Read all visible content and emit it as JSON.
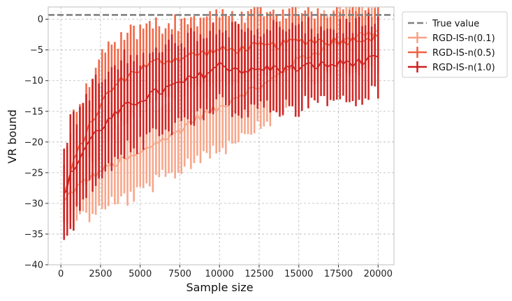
{
  "chart_data": {
    "type": "line",
    "title": "",
    "xlabel": "Sample size",
    "ylabel": "VR bound",
    "xlim": [
      -800,
      21000
    ],
    "ylim": [
      -40,
      2
    ],
    "x_ticks": [
      0,
      2500,
      5000,
      7500,
      10000,
      12500,
      15000,
      17500,
      20000
    ],
    "y_ticks": [
      0,
      -5,
      -10,
      -15,
      -20,
      -25,
      -30,
      -35,
      -40
    ],
    "x_tick_labels": [
      "0",
      "2500",
      "5000",
      "7500",
      "10000",
      "12500",
      "15000",
      "17500",
      "20000"
    ],
    "y_tick_labels": [
      "0",
      "−5",
      "−10",
      "−15",
      "−20",
      "−25",
      "−30",
      "−35",
      "−40"
    ],
    "grid": true,
    "legend_placement": "outside-right-top",
    "true_value": 0.7,
    "x_start": 200,
    "x_step": 200,
    "series": [
      {
        "name": "RGD-IS-n(0.1)",
        "color": "#f7a184",
        "knots_x": [
          200,
          500,
          1000,
          1500,
          2000,
          3000,
          4000,
          5000,
          6000,
          7000,
          8000,
          9000,
          10000,
          11000,
          12000,
          13000,
          14000,
          15000,
          16000,
          17000,
          18000,
          19000,
          20000
        ],
        "knots_mean": [
          -30,
          -28.5,
          -27.5,
          -26.5,
          -25.5,
          -24,
          -23,
          -22,
          -20,
          -19,
          -17,
          -15.5,
          -14.5,
          -12.5,
          -11.5,
          -10.5,
          -8.5,
          -6.5,
          -5.5,
          -4,
          -3,
          -2.5,
          -2
        ],
        "knots_err": [
          3.5,
          4,
          5,
          6,
          6,
          6.5,
          6.5,
          6.5,
          6.5,
          6.5,
          6.5,
          6.5,
          6.5,
          6.5,
          6.5,
          6.5,
          6.5,
          6,
          5.5,
          5,
          5,
          5,
          4.5
        ]
      },
      {
        "name": "RGD-IS-n(0.5)",
        "color": "#f0603f",
        "knots_x": [
          200,
          500,
          1000,
          1500,
          2000,
          2500,
          3000,
          4000,
          5000,
          6000,
          7000,
          8000,
          9000,
          10000,
          11000,
          12000,
          13000,
          14000,
          15000,
          16000,
          17000,
          18000,
          19000,
          20000
        ],
        "knots_mean": [
          -28.5,
          -26,
          -22,
          -19,
          -16.5,
          -14,
          -12,
          -9.5,
          -8,
          -7,
          -6.5,
          -6,
          -5.5,
          -5,
          -5,
          -4.5,
          -4.5,
          -4,
          -3.5,
          -3.5,
          -3.5,
          -3.5,
          -3,
          -3
        ],
        "knots_err": [
          5,
          7,
          7,
          7,
          7,
          7,
          7,
          6.5,
          6.5,
          6,
          6,
          6,
          5.5,
          5.5,
          5.5,
          5.5,
          5.5,
          5,
          5,
          5,
          5,
          5,
          5,
          5
        ]
      },
      {
        "name": "RGD-IS-n(1.0)",
        "color": "#cc1f1f",
        "knots_x": [
          200,
          500,
          1000,
          1500,
          2000,
          3000,
          4000,
          5000,
          6000,
          7000,
          8000,
          9000,
          10000,
          11000,
          12000,
          13000,
          14000,
          15000,
          16000,
          17000,
          18000,
          19000,
          20000
        ],
        "knots_mean": [
          -29,
          -26,
          -23.5,
          -21,
          -19,
          -16.5,
          -14.5,
          -13,
          -12,
          -11,
          -10,
          -9,
          -7.5,
          -8,
          -8.5,
          -8,
          -8,
          -8,
          -7.5,
          -7.5,
          -7,
          -7,
          -6.5
        ],
        "knots_err": [
          8.5,
          8.5,
          8,
          8,
          8,
          7.5,
          7.5,
          7,
          7,
          7,
          7,
          7,
          6.5,
          6.5,
          6.5,
          6.5,
          6.5,
          6.5,
          6,
          6,
          6,
          6,
          6
        ]
      }
    ],
    "legend": [
      {
        "label": "True value",
        "style": "dashed",
        "color": "#808080"
      },
      {
        "label": "RGD-IS-n(0.1)",
        "style": "errorbar",
        "color": "#f7a184"
      },
      {
        "label": "RGD-IS-n(0.5)",
        "style": "errorbar",
        "color": "#f0603f"
      },
      {
        "label": "RGD-IS-n(1.0)",
        "style": "errorbar",
        "color": "#cc1f1f"
      }
    ]
  }
}
